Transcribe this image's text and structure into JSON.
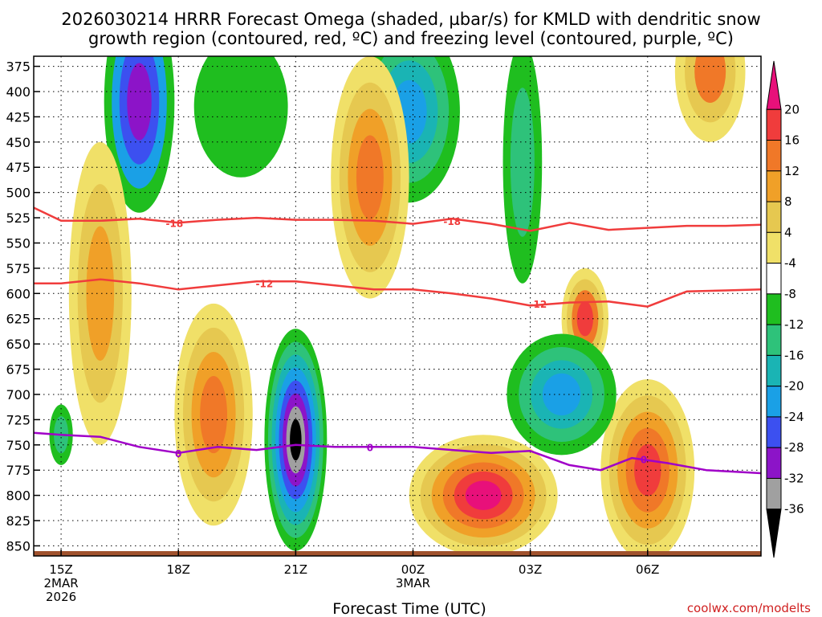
{
  "chart_data": {
    "type": "heatmap",
    "title_line1": "2026030214 HRRR Forecast Omega (shaded, µbar/s) for KMLD with dendritic snow",
    "title_line2": "growth region (contoured, red, ºC) and freezing level (contoured, purple, ºC)",
    "xlabel": "Forecast Time (UTC)",
    "ylabel": "",
    "credit": "coolwx.com/modelts",
    "y_axis": {
      "scale": "pressure (hPa), reversed",
      "ylim": [
        860,
        365
      ],
      "ticks": [
        375,
        400,
        425,
        450,
        475,
        500,
        525,
        550,
        575,
        600,
        625,
        650,
        675,
        700,
        725,
        750,
        775,
        800,
        825,
        850
      ]
    },
    "x_axis": {
      "unit": "hours",
      "xlim": [
        14.3,
        32.9
      ],
      "ticks": [
        {
          "hour": 15,
          "lines": [
            "15Z",
            "2MAR",
            "2026"
          ]
        },
        {
          "hour": 18,
          "lines": [
            "18Z"
          ]
        },
        {
          "hour": 21,
          "lines": [
            "21Z"
          ]
        },
        {
          "hour": 24,
          "lines": [
            "00Z",
            "3MAR"
          ]
        },
        {
          "hour": 27,
          "lines": [
            "03Z"
          ]
        },
        {
          "hour": 30,
          "lines": [
            "06Z"
          ]
        }
      ]
    },
    "grid": "dotted",
    "colorbar": {
      "placement": "right",
      "labels": [
        "20",
        "16",
        "12",
        "8",
        "4",
        "-4",
        "-8",
        "-12",
        "-16",
        "-20",
        "-24",
        "-28",
        "-32",
        "-36"
      ],
      "bands": [
        {
          "color": "#e8107a"
        },
        {
          "color": "#f03c3c"
        },
        {
          "color": "#f07828"
        },
        {
          "color": "#f0a028"
        },
        {
          "color": "#e6c850"
        },
        {
          "color": "#f0e068"
        },
        {
          "color": "#ffffff"
        },
        {
          "color": "#1fbe1f"
        },
        {
          "color": "#2ec27a"
        },
        {
          "color": "#1ab4b4"
        },
        {
          "color": "#1aa0e6"
        },
        {
          "color": "#3c50f0"
        },
        {
          "color": "#8c14c8"
        },
        {
          "color": "#a0a0a0"
        },
        {
          "color": "#000000"
        }
      ]
    },
    "omega_features": [
      {
        "t": 17.0,
        "p": 410,
        "rt": 0.9,
        "rp": 110,
        "levels": [
          "#1fbe1f",
          "#1aa0e6",
          "#3c50f0",
          "#8c14c8"
        ]
      },
      {
        "t": 19.6,
        "p": 415,
        "rt": 1.2,
        "rp": 70,
        "levels": [
          "#1fbe1f"
        ]
      },
      {
        "t": 23.9,
        "p": 420,
        "rt": 1.3,
        "rp": 90,
        "levels": [
          "#1fbe1f",
          "#2ec27a",
          "#1ab4b4",
          "#1aa0e6"
        ]
      },
      {
        "t": 21.0,
        "p": 745,
        "rt": 0.8,
        "rp": 110,
        "levels": [
          "#1fbe1f",
          "#2ec27a",
          "#1ab4b4",
          "#1aa0e6",
          "#3c50f0",
          "#8c14c8",
          "#a0a0a0",
          "#000000"
        ]
      },
      {
        "t": 22.9,
        "p": 485,
        "rt": 1.0,
        "rp": 120,
        "levels": [
          "#f0e068",
          "#e6c850",
          "#f0a028",
          "#f07828"
        ]
      },
      {
        "t": 16.0,
        "p": 600,
        "rt": 0.8,
        "rp": 150,
        "levels": [
          "#f0e068",
          "#e6c850",
          "#f0a028"
        ]
      },
      {
        "t": 18.9,
        "p": 720,
        "rt": 1.0,
        "rp": 110,
        "levels": [
          "#f0e068",
          "#e6c850",
          "#f0a028",
          "#f07828"
        ]
      },
      {
        "t": 25.8,
        "p": 800,
        "rt": 1.9,
        "rp": 60,
        "levels": [
          "#f0e068",
          "#e6c850",
          "#f0a028",
          "#f07828",
          "#f03c3c",
          "#e8107a"
        ]
      },
      {
        "t": 30.0,
        "p": 775,
        "rt": 1.2,
        "rp": 90,
        "levels": [
          "#f0e068",
          "#e6c850",
          "#f0a028",
          "#f07828",
          "#f03c3c"
        ]
      },
      {
        "t": 28.4,
        "p": 625,
        "rt": 0.6,
        "rp": 50,
        "levels": [
          "#f0e068",
          "#e6c850",
          "#f07828",
          "#f03c3c"
        ]
      },
      {
        "t": 31.6,
        "p": 380,
        "rt": 0.9,
        "rp": 70,
        "levels": [
          "#f0e068",
          "#e6c850",
          "#f07828"
        ]
      },
      {
        "t": 27.8,
        "p": 700,
        "rt": 1.4,
        "rp": 60,
        "levels": [
          "#1fbe1f",
          "#2ec27a",
          "#1ab4b4",
          "#1aa0e6"
        ]
      },
      {
        "t": 26.8,
        "p": 470,
        "rt": 0.5,
        "rp": 120,
        "levels": [
          "#1fbe1f",
          "#2ec27a"
        ]
      },
      {
        "t": 15.0,
        "p": 740,
        "rt": 0.3,
        "rp": 30,
        "levels": [
          "#1fbe1f",
          "#2ec27a"
        ]
      }
    ],
    "series": [
      {
        "name": "-18",
        "color": "#f03c3c",
        "label_at": [
          [
            17.9,
            530
          ],
          [
            25.0,
            528
          ]
        ],
        "x": [
          14.3,
          15.0,
          16.0,
          17.0,
          18.0,
          19.0,
          20.0,
          21.0,
          22.0,
          23.0,
          24.0,
          25.0,
          26.0,
          27.0,
          28.0,
          29.0,
          30.0,
          31.0,
          32.0,
          32.9
        ],
        "y": [
          515,
          528,
          528,
          526,
          530,
          527,
          525,
          527,
          527,
          528,
          531,
          526,
          531,
          538,
          530,
          537,
          535,
          533,
          533,
          532
        ]
      },
      {
        "name": "-12",
        "color": "#f03c3c",
        "label_at": [
          [
            20.2,
            590
          ],
          [
            27.2,
            610
          ]
        ],
        "x": [
          14.3,
          15.0,
          16.0,
          17.0,
          18.0,
          19.0,
          20.0,
          21.0,
          22.0,
          23.0,
          24.0,
          25.0,
          26.0,
          27.0,
          28.0,
          29.0,
          30.0,
          31.0,
          32.0,
          32.9
        ],
        "y": [
          590,
          590,
          586,
          590,
          596,
          592,
          588,
          588,
          592,
          596,
          596,
          600,
          605,
          612,
          609,
          608,
          613,
          598,
          597,
          596
        ]
      },
      {
        "name": "0",
        "color": "#a000c8",
        "label_at": [
          [
            18.0,
            758
          ],
          [
            22.9,
            752
          ],
          [
            29.9,
            764
          ]
        ],
        "x": [
          14.3,
          15.0,
          16.0,
          17.0,
          18.0,
          19.0,
          20.0,
          21.0,
          22.0,
          23.0,
          24.0,
          25.0,
          26.0,
          27.0,
          28.0,
          28.8,
          29.6,
          30.5,
          31.5,
          32.9
        ],
        "y": [
          738,
          740,
          742,
          752,
          758,
          752,
          755,
          750,
          752,
          752,
          752,
          755,
          758,
          756,
          770,
          775,
          763,
          768,
          775,
          778
        ]
      }
    ]
  }
}
